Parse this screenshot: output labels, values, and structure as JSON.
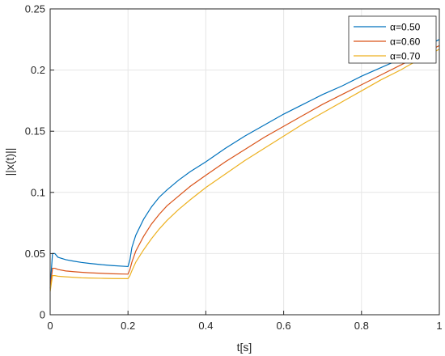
{
  "chart_data": {
    "type": "line",
    "title": "",
    "xlabel": "t[s]",
    "ylabel": "||x(t)||",
    "xlim": [
      0,
      1
    ],
    "ylim": [
      0,
      0.25
    ],
    "x_ticks": [
      0,
      0.2,
      0.4,
      0.6,
      0.8,
      1
    ],
    "x_tick_labels": [
      "0",
      "0.2",
      "0.4",
      "0.6",
      "0.8",
      "1"
    ],
    "y_ticks": [
      0,
      0.05,
      0.1,
      0.15,
      0.2,
      0.25
    ],
    "y_tick_labels": [
      "0",
      "0.05",
      "0.1",
      "0.15",
      "0.2",
      "0.25"
    ],
    "grid": true,
    "legend_position": "top-right",
    "series": [
      {
        "name": "α=0.50",
        "color": "#0072BD",
        "points": [
          [
            0,
            0.022
          ],
          [
            0.006,
            0.05
          ],
          [
            0.012,
            0.05
          ],
          [
            0.02,
            0.047
          ],
          [
            0.04,
            0.045
          ],
          [
            0.06,
            0.0438
          ],
          [
            0.08,
            0.0428
          ],
          [
            0.1,
            0.042
          ],
          [
            0.13,
            0.041
          ],
          [
            0.16,
            0.0402
          ],
          [
            0.2,
            0.0394
          ],
          [
            0.205,
            0.045
          ],
          [
            0.21,
            0.055
          ],
          [
            0.22,
            0.065
          ],
          [
            0.24,
            0.078
          ],
          [
            0.26,
            0.088
          ],
          [
            0.28,
            0.096
          ],
          [
            0.3,
            0.102
          ],
          [
            0.33,
            0.11
          ],
          [
            0.36,
            0.117
          ],
          [
            0.4,
            0.125
          ],
          [
            0.45,
            0.136
          ],
          [
            0.5,
            0.146
          ],
          [
            0.55,
            0.155
          ],
          [
            0.6,
            0.164
          ],
          [
            0.65,
            0.172
          ],
          [
            0.7,
            0.18
          ],
          [
            0.75,
            0.187
          ],
          [
            0.8,
            0.195
          ],
          [
            0.85,
            0.202
          ],
          [
            0.9,
            0.209
          ],
          [
            0.95,
            0.217
          ],
          [
            1.0,
            0.225
          ]
        ]
      },
      {
        "name": "α=0.60",
        "color": "#D95319",
        "points": [
          [
            0,
            0.021
          ],
          [
            0.006,
            0.038
          ],
          [
            0.012,
            0.038
          ],
          [
            0.02,
            0.037
          ],
          [
            0.04,
            0.0358
          ],
          [
            0.06,
            0.0352
          ],
          [
            0.08,
            0.0347
          ],
          [
            0.1,
            0.0343
          ],
          [
            0.13,
            0.0339
          ],
          [
            0.16,
            0.0335
          ],
          [
            0.2,
            0.0332
          ],
          [
            0.205,
            0.037
          ],
          [
            0.21,
            0.043
          ],
          [
            0.22,
            0.052
          ],
          [
            0.24,
            0.064
          ],
          [
            0.26,
            0.074
          ],
          [
            0.28,
            0.082
          ],
          [
            0.3,
            0.089
          ],
          [
            0.33,
            0.097
          ],
          [
            0.36,
            0.105
          ],
          [
            0.4,
            0.114
          ],
          [
            0.45,
            0.125
          ],
          [
            0.5,
            0.135
          ],
          [
            0.55,
            0.145
          ],
          [
            0.6,
            0.154
          ],
          [
            0.65,
            0.163
          ],
          [
            0.7,
            0.172
          ],
          [
            0.75,
            0.18
          ],
          [
            0.8,
            0.188
          ],
          [
            0.85,
            0.196
          ],
          [
            0.9,
            0.204
          ],
          [
            0.95,
            0.212
          ],
          [
            1.0,
            0.22
          ]
        ]
      },
      {
        "name": "α=0.70",
        "color": "#EDB120",
        "points": [
          [
            0,
            0.019
          ],
          [
            0.006,
            0.032
          ],
          [
            0.012,
            0.032
          ],
          [
            0.02,
            0.0315
          ],
          [
            0.04,
            0.031
          ],
          [
            0.06,
            0.0306
          ],
          [
            0.08,
            0.0302
          ],
          [
            0.1,
            0.03
          ],
          [
            0.13,
            0.0298
          ],
          [
            0.16,
            0.0296
          ],
          [
            0.2,
            0.0295
          ],
          [
            0.205,
            0.032
          ],
          [
            0.21,
            0.036
          ],
          [
            0.22,
            0.043
          ],
          [
            0.24,
            0.053
          ],
          [
            0.26,
            0.062
          ],
          [
            0.28,
            0.07
          ],
          [
            0.3,
            0.077
          ],
          [
            0.33,
            0.086
          ],
          [
            0.36,
            0.094
          ],
          [
            0.4,
            0.104
          ],
          [
            0.45,
            0.115
          ],
          [
            0.5,
            0.126
          ],
          [
            0.55,
            0.136
          ],
          [
            0.6,
            0.146
          ],
          [
            0.65,
            0.156
          ],
          [
            0.7,
            0.165
          ],
          [
            0.75,
            0.174
          ],
          [
            0.8,
            0.183
          ],
          [
            0.85,
            0.192
          ],
          [
            0.9,
            0.2
          ],
          [
            0.95,
            0.209
          ],
          [
            1.0,
            0.217
          ]
        ]
      }
    ]
  }
}
